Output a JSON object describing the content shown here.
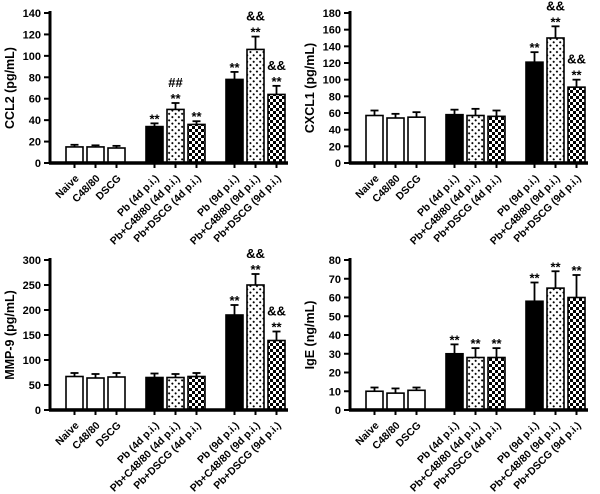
{
  "figure": {
    "background": "#ffffff",
    "ink": "#000000",
    "layout": "2x2-grid-of-bar-charts",
    "legend": "none"
  },
  "categories": [
    "Naive",
    "C48/80",
    "DSCG",
    "Pb (4d p.i.)",
    "Pb+C48/80 (4d p.i.)",
    "Pb+DSCG (4d p.i.)",
    "Pb (9d p.i.)",
    "Pb+C48/80 (9d p.i.)",
    "Pb+DSCG (9d p.i.)"
  ],
  "bar_patterns": [
    "open",
    "open",
    "open",
    "solid",
    "stipple",
    "checker",
    "solid",
    "stipple",
    "checker"
  ],
  "chart_data": [
    {
      "id": "ccl2",
      "type": "bar",
      "title": "",
      "xlabel": "",
      "ylabel": "CCL2 (pg/mL)",
      "ylim": [
        0,
        140
      ],
      "ytick_step": 20,
      "grid": false,
      "categories": [
        "Naive",
        "C48/80",
        "DSCG",
        "Pb (4d p.i.)",
        "Pb+C48/80 (4d p.i.)",
        "Pb+DSCG (4d p.i.)",
        "Pb (9d p.i.)",
        "Pb+C48/80 (9d p.i.)",
        "Pb+DSCG (9d p.i.)"
      ],
      "values": [
        15,
        15,
        14,
        34,
        50,
        36,
        78,
        106,
        64
      ],
      "errors": [
        2,
        1.5,
        2,
        3,
        6,
        3,
        7,
        12,
        8
      ],
      "significance": [
        [],
        [],
        [],
        [
          "**"
        ],
        [
          "##",
          "**"
        ],
        [
          "**"
        ],
        [
          "**"
        ],
        [
          "&&",
          "**"
        ],
        [
          "&&",
          "**"
        ]
      ],
      "bar_patterns": [
        "open",
        "open",
        "open",
        "solid",
        "stipple",
        "checker",
        "solid",
        "stipple",
        "checker"
      ]
    },
    {
      "id": "cxcl1",
      "type": "bar",
      "title": "",
      "xlabel": "",
      "ylabel": "CXCL1 (pg/mL)",
      "ylim": [
        0,
        180
      ],
      "ytick_step": 20,
      "grid": false,
      "categories": [
        "Naive",
        "C48/80",
        "DSCG",
        "Pb (4d p.i.)",
        "Pb+C48/80 (4d p.i.)",
        "Pb+DSCG (4d p.i.)",
        "Pb (9d p.i.)",
        "Pb+C48/80 (9d p.i.)",
        "Pb+DSCG (9d p.i.)"
      ],
      "values": [
        57,
        54,
        55,
        58,
        57,
        56,
        121,
        150,
        91
      ],
      "errors": [
        6,
        5,
        6,
        6,
        8,
        7,
        12,
        14,
        9
      ],
      "significance": [
        [],
        [],
        [],
        [],
        [],
        [],
        [
          "**"
        ],
        [
          "&&",
          "**"
        ],
        [
          "&&",
          "**"
        ]
      ],
      "bar_patterns": [
        "open",
        "open",
        "open",
        "solid",
        "stipple",
        "checker",
        "solid",
        "stipple",
        "checker"
      ]
    },
    {
      "id": "mmp9",
      "type": "bar",
      "title": "",
      "xlabel": "",
      "ylabel": "MMP-9 (pg/mL)",
      "ylim": [
        0,
        300
      ],
      "ytick_step": 50,
      "grid": false,
      "categories": [
        "Naive",
        "C48/80",
        "DSCG",
        "Pb (4d p.i.)",
        "Pb+C48/80 (4d p.i.)",
        "Pb+DSCG (4d p.i.)",
        "Pb (9d p.i.)",
        "Pb+C48/80 (9d p.i.)",
        "Pb+DSCG (9d p.i.)"
      ],
      "values": [
        67,
        64,
        66,
        65,
        65,
        67,
        190,
        250,
        139
      ],
      "errors": [
        7,
        8,
        8,
        8,
        7,
        7,
        20,
        22,
        18
      ],
      "significance": [
        [],
        [],
        [],
        [],
        [],
        [],
        [
          "**"
        ],
        [
          "&&",
          "**"
        ],
        [
          "&&",
          "**"
        ]
      ],
      "bar_patterns": [
        "open",
        "open",
        "open",
        "solid",
        "stipple",
        "checker",
        "solid",
        "stipple",
        "checker"
      ]
    },
    {
      "id": "ige",
      "type": "bar",
      "title": "",
      "xlabel": "",
      "ylabel": "IgE (ng/mL)",
      "ylim": [
        0,
        80
      ],
      "ytick_step": 10,
      "grid": false,
      "categories": [
        "Naive",
        "C48/80",
        "DSCG",
        "Pb (4d p.i.)",
        "Pb+C48/80 (4d p.i.)",
        "Pb+DSCG (4d p.i.)",
        "Pb (9d p.i.)",
        "Pb+C48/80 (9d p.i.)",
        "Pb+DSCG (9d p.i.)"
      ],
      "values": [
        10,
        9,
        10.5,
        30,
        28,
        28,
        58,
        65,
        60
      ],
      "errors": [
        2,
        2.5,
        1.5,
        5,
        5,
        5,
        10,
        9,
        12
      ],
      "significance": [
        [],
        [],
        [],
        [
          "**"
        ],
        [
          "**"
        ],
        [
          "**"
        ],
        [
          "**"
        ],
        [
          "**"
        ],
        [
          "**"
        ]
      ],
      "bar_patterns": [
        "open",
        "open",
        "open",
        "solid",
        "stipple",
        "checker",
        "solid",
        "stipple",
        "checker"
      ]
    }
  ]
}
